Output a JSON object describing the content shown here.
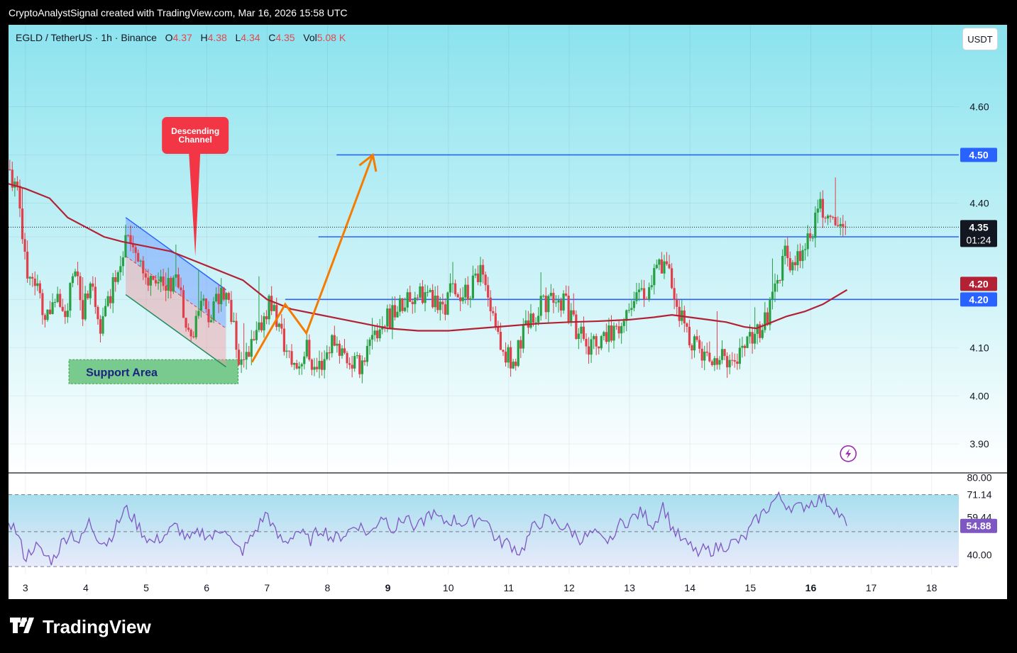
{
  "header": {
    "text": "CryptoAnalystSignal created with TradingView.com, Mar 16, 2026 15:58 UTC"
  },
  "legend": {
    "symbol": "EGLD / TetherUS · 1h · Binance",
    "open_label": "O",
    "open": "4.37",
    "high_label": "H",
    "high": "4.38",
    "low_label": "L",
    "low": "4.34",
    "close_label": "C",
    "close": "4.35",
    "vol_label": "Vol",
    "vol": "5.08 K"
  },
  "currency_button": "USDT",
  "logo_text": "TradingView",
  "colors": {
    "bg_top": "#8be3ee",
    "bg_bottom": "#ffffff",
    "up": "#26a042",
    "down": "#e0404a",
    "ma": "#b22234",
    "hline": "#2962ff",
    "arrow": "#f57c00",
    "rsi": "#7e57c2",
    "channel_blue": "#2962ff",
    "channel_green": "#1e8a5a"
  },
  "chart_data": {
    "type": "candlestick",
    "pair": "EGLD / TetherUS",
    "timeframe": "1h",
    "ylim": [
      3.84,
      4.77
    ],
    "y_ticks": [
      "4.60",
      "4.50",
      "4.40",
      "4.35",
      "4.33",
      "4.20",
      "4.20",
      "4.10",
      "4.00",
      "3.90"
    ],
    "x_ticks": [
      "3",
      "4",
      "5",
      "6",
      "7",
      "8",
      "9",
      "10",
      "11",
      "12",
      "13",
      "14",
      "15",
      "16",
      "17",
      "18"
    ],
    "x_range_days": [
      2.72,
      18.45
    ],
    "bold_x_ticks": [
      "9",
      "16"
    ],
    "last_price": {
      "value": 4.35,
      "label": "4.35",
      "countdown": "01:24"
    },
    "levels": [
      {
        "value": 4.5,
        "label": "4.50",
        "from_day": 8.15
      },
      {
        "value": 4.33,
        "label": "4.33",
        "from_day": 7.85
      },
      {
        "value": 4.2,
        "label": "4.20",
        "from_day": 7.3
      }
    ],
    "ma_label": "4.20",
    "price_anchors": [
      [
        2.72,
        4.47
      ],
      [
        2.9,
        4.4
      ],
      [
        3.05,
        4.23
      ],
      [
        3.2,
        4.22
      ],
      [
        3.35,
        4.15
      ],
      [
        3.5,
        4.22
      ],
      [
        3.65,
        4.14
      ],
      [
        3.8,
        4.26
      ],
      [
        3.95,
        4.18
      ],
      [
        4.1,
        4.22
      ],
      [
        4.25,
        4.14
      ],
      [
        4.4,
        4.21
      ],
      [
        4.55,
        4.28
      ],
      [
        4.7,
        4.34
      ],
      [
        4.85,
        4.3
      ],
      [
        5.0,
        4.23
      ],
      [
        5.15,
        4.25
      ],
      [
        5.3,
        4.21
      ],
      [
        5.5,
        4.24
      ],
      [
        5.65,
        4.17
      ],
      [
        5.75,
        4.11
      ],
      [
        5.9,
        4.19
      ],
      [
        6.05,
        4.16
      ],
      [
        6.2,
        4.2
      ],
      [
        6.35,
        4.21
      ],
      [
        6.5,
        4.1
      ],
      [
        6.6,
        4.05
      ],
      [
        6.75,
        4.1
      ],
      [
        6.9,
        4.15
      ],
      [
        7.05,
        4.2
      ],
      [
        7.2,
        4.14
      ],
      [
        7.35,
        4.08
      ],
      [
        7.5,
        4.06
      ],
      [
        7.65,
        4.1
      ],
      [
        7.8,
        4.05
      ],
      [
        7.95,
        4.08
      ],
      [
        8.1,
        4.12
      ],
      [
        8.3,
        4.08
      ],
      [
        8.5,
        4.06
      ],
      [
        8.7,
        4.1
      ],
      [
        8.9,
        4.15
      ],
      [
        9.1,
        4.17
      ],
      [
        9.3,
        4.2
      ],
      [
        9.5,
        4.22
      ],
      [
        9.7,
        4.2
      ],
      [
        9.9,
        4.18
      ],
      [
        10.1,
        4.23
      ],
      [
        10.3,
        4.21
      ],
      [
        10.55,
        4.25
      ],
      [
        10.75,
        4.15
      ],
      [
        10.9,
        4.09
      ],
      [
        11.1,
        4.07
      ],
      [
        11.3,
        4.15
      ],
      [
        11.5,
        4.18
      ],
      [
        11.7,
        4.21
      ],
      [
        11.9,
        4.2
      ],
      [
        12.1,
        4.14
      ],
      [
        12.3,
        4.11
      ],
      [
        12.5,
        4.1
      ],
      [
        12.7,
        4.13
      ],
      [
        12.9,
        4.16
      ],
      [
        13.1,
        4.22
      ],
      [
        13.3,
        4.21
      ],
      [
        13.5,
        4.27
      ],
      [
        13.65,
        4.25
      ],
      [
        13.8,
        4.18
      ],
      [
        13.95,
        4.13
      ],
      [
        14.1,
        4.1
      ],
      [
        14.3,
        4.08
      ],
      [
        14.5,
        4.09
      ],
      [
        14.7,
        4.07
      ],
      [
        14.9,
        4.09
      ],
      [
        15.05,
        4.12
      ],
      [
        15.25,
        4.15
      ],
      [
        15.4,
        4.22
      ],
      [
        15.55,
        4.29
      ],
      [
        15.7,
        4.28
      ],
      [
        15.85,
        4.31
      ],
      [
        16.0,
        4.34
      ],
      [
        16.15,
        4.39
      ],
      [
        16.3,
        4.38
      ],
      [
        16.45,
        4.37
      ],
      [
        16.6,
        4.35
      ]
    ],
    "ma_points": [
      [
        2.72,
        4.44
      ],
      [
        3.0,
        4.43
      ],
      [
        3.4,
        4.41
      ],
      [
        3.7,
        4.37
      ],
      [
        4.0,
        4.35
      ],
      [
        4.3,
        4.33
      ],
      [
        4.6,
        4.32
      ],
      [
        5.0,
        4.31
      ],
      [
        5.4,
        4.3
      ],
      [
        5.8,
        4.28
      ],
      [
        6.2,
        4.26
      ],
      [
        6.6,
        4.24
      ],
      [
        7.0,
        4.2
      ],
      [
        7.4,
        4.18
      ],
      [
        7.8,
        4.17
      ],
      [
        8.2,
        4.16
      ],
      [
        8.6,
        4.15
      ],
      [
        9.0,
        4.14
      ],
      [
        9.5,
        4.135
      ],
      [
        10.0,
        4.135
      ],
      [
        10.5,
        4.14
      ],
      [
        11.0,
        4.145
      ],
      [
        11.5,
        4.15
      ],
      [
        12.0,
        4.153
      ],
      [
        12.5,
        4.155
      ],
      [
        13.0,
        4.158
      ],
      [
        13.4,
        4.163
      ],
      [
        13.7,
        4.168
      ],
      [
        14.0,
        4.163
      ],
      [
        14.3,
        4.158
      ],
      [
        14.6,
        4.153
      ],
      [
        14.9,
        4.143
      ],
      [
        15.1,
        4.14
      ],
      [
        15.3,
        4.15
      ],
      [
        15.6,
        4.165
      ],
      [
        15.9,
        4.175
      ],
      [
        16.2,
        4.19
      ],
      [
        16.4,
        4.205
      ],
      [
        16.6,
        4.22
      ]
    ],
    "descending_channel": {
      "label": "Descending Channel",
      "upper": [
        [
          4.66,
          4.37
        ],
        [
          6.32,
          4.22
        ]
      ],
      "lower": [
        [
          4.66,
          4.21
        ],
        [
          6.32,
          4.06
        ]
      ]
    },
    "support_area": {
      "label": "Support Area",
      "days": [
        3.72,
        6.52
      ],
      "prices": [
        4.025,
        4.075
      ]
    },
    "projection_arrow": [
      [
        6.75,
        4.07
      ],
      [
        7.3,
        4.19
      ],
      [
        7.65,
        4.13
      ],
      [
        8.75,
        4.5
      ]
    ],
    "rsi": {
      "ylim": [
        30,
        82
      ],
      "levels": [
        "80.00",
        "71.14",
        "59.44",
        "40.00"
      ],
      "current": "54.88",
      "band_upper": 71.14,
      "band_lower": 34.0,
      "mid": 52.0,
      "anchors": [
        [
          2.72,
          58
        ],
        [
          2.85,
          52
        ],
        [
          3.0,
          38
        ],
        [
          3.15,
          45
        ],
        [
          3.3,
          40
        ],
        [
          3.45,
          37
        ],
        [
          3.6,
          46
        ],
        [
          3.75,
          52
        ],
        [
          3.9,
          46
        ],
        [
          4.05,
          57
        ],
        [
          4.2,
          49
        ],
        [
          4.35,
          46
        ],
        [
          4.5,
          54
        ],
        [
          4.65,
          64
        ],
        [
          4.8,
          58
        ],
        [
          4.95,
          51
        ],
        [
          5.1,
          46
        ],
        [
          5.3,
          50
        ],
        [
          5.5,
          55
        ],
        [
          5.7,
          47
        ],
        [
          5.9,
          52
        ],
        [
          6.1,
          49
        ],
        [
          6.3,
          55
        ],
        [
          6.45,
          44
        ],
        [
          6.6,
          42
        ],
        [
          6.8,
          52
        ],
        [
          7.0,
          62
        ],
        [
          7.15,
          50
        ],
        [
          7.3,
          46
        ],
        [
          7.5,
          53
        ],
        [
          7.7,
          47
        ],
        [
          7.9,
          54
        ],
        [
          8.1,
          48
        ],
        [
          8.3,
          51
        ],
        [
          8.5,
          56
        ],
        [
          8.7,
          50
        ],
        [
          8.9,
          61
        ],
        [
          9.1,
          53
        ],
        [
          9.3,
          60
        ],
        [
          9.5,
          54
        ],
        [
          9.7,
          62
        ],
        [
          9.9,
          57
        ],
        [
          10.1,
          58
        ],
        [
          10.3,
          56
        ],
        [
          10.6,
          60
        ],
        [
          10.8,
          47
        ],
        [
          11.0,
          46
        ],
        [
          11.2,
          41
        ],
        [
          11.4,
          54
        ],
        [
          11.6,
          58
        ],
        [
          11.8,
          56
        ],
        [
          12.0,
          53
        ],
        [
          12.2,
          48
        ],
        [
          12.4,
          51
        ],
        [
          12.6,
          46
        ],
        [
          12.8,
          55
        ],
        [
          13.0,
          58
        ],
        [
          13.2,
          62
        ],
        [
          13.4,
          55
        ],
        [
          13.55,
          66
        ],
        [
          13.7,
          54
        ],
        [
          13.9,
          46
        ],
        [
          14.1,
          43
        ],
        [
          14.3,
          42
        ],
        [
          14.5,
          44
        ],
        [
          14.7,
          46
        ],
        [
          14.9,
          48
        ],
        [
          15.05,
          56
        ],
        [
          15.25,
          63
        ],
        [
          15.45,
          70
        ],
        [
          15.6,
          66
        ],
        [
          15.8,
          64
        ],
        [
          16.0,
          67
        ],
        [
          16.2,
          69
        ],
        [
          16.4,
          64
        ],
        [
          16.6,
          55
        ]
      ]
    }
  }
}
